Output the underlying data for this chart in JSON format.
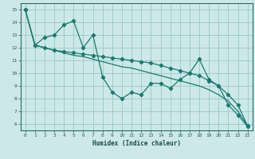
{
  "xlabel": "Humidex (Indice chaleur)",
  "ylabel": "",
  "background_color": "#cde8e8",
  "grid_color": "#a0cccc",
  "line_color": "#1a7a6e",
  "xlim": [
    -0.5,
    23.5
  ],
  "ylim": [
    5.5,
    15.5
  ],
  "xticks": [
    0,
    1,
    2,
    3,
    4,
    5,
    6,
    7,
    8,
    9,
    10,
    11,
    12,
    13,
    14,
    15,
    16,
    17,
    18,
    19,
    20,
    21,
    22,
    23
  ],
  "yticks": [
    6,
    7,
    8,
    9,
    10,
    11,
    12,
    13,
    14,
    15
  ],
  "series1_x": [
    0,
    1,
    2,
    3,
    4,
    5,
    6,
    7,
    8,
    9,
    10,
    11,
    12,
    13,
    14,
    15,
    16,
    17,
    18,
    19,
    20,
    21,
    22,
    23
  ],
  "series1_y": [
    15,
    12.2,
    12.8,
    13.0,
    13.8,
    14.1,
    12.0,
    13.0,
    9.7,
    8.5,
    8.0,
    8.5,
    8.3,
    9.2,
    9.2,
    8.8,
    9.5,
    10.0,
    11.1,
    9.5,
    9.0,
    7.5,
    6.7,
    5.8
  ],
  "series2_x": [
    0,
    1,
    2,
    3,
    4,
    5,
    6,
    7,
    8,
    9,
    10,
    11,
    12,
    13,
    14,
    15,
    16,
    17,
    18,
    19,
    20,
    21,
    22,
    23
  ],
  "series2_y": [
    15.0,
    12.2,
    12.0,
    11.8,
    11.7,
    11.6,
    11.5,
    11.4,
    11.3,
    11.2,
    11.1,
    11.0,
    10.9,
    10.8,
    10.6,
    10.4,
    10.2,
    10.0,
    9.8,
    9.4,
    9.0,
    8.3,
    7.5,
    5.85
  ],
  "series3_x": [
    0,
    1,
    2,
    3,
    4,
    5,
    6,
    7,
    8,
    9,
    10,
    11,
    12,
    13,
    14,
    15,
    16,
    17,
    18,
    19,
    20,
    21,
    22,
    23
  ],
  "series3_y": [
    15.0,
    12.2,
    12.0,
    11.8,
    11.6,
    11.4,
    11.3,
    11.1,
    10.9,
    10.7,
    10.5,
    10.4,
    10.2,
    10.0,
    9.8,
    9.6,
    9.4,
    9.2,
    9.0,
    8.7,
    8.3,
    7.8,
    7.0,
    5.85
  ]
}
